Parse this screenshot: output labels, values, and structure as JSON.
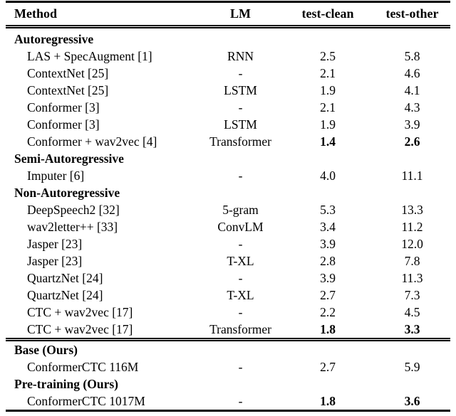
{
  "page": {
    "background": "#ffffff",
    "text_color": "#000000"
  },
  "table": {
    "columns": [
      {
        "label": "Method",
        "align": "left"
      },
      {
        "label": "LM",
        "align": "center"
      },
      {
        "label": "test-clean",
        "align": "center"
      },
      {
        "label": "test-other",
        "align": "center"
      }
    ],
    "groups": [
      {
        "rows": [
          {
            "type": "section",
            "label": "Autoregressive"
          },
          {
            "type": "data",
            "method": "LAS + SpecAugment [1]",
            "lm": "RNN",
            "test_clean": "2.5",
            "test_other": "5.8",
            "bold_values": false
          },
          {
            "type": "data",
            "method": "ContextNet [25]",
            "lm": "-",
            "test_clean": "2.1",
            "test_other": "4.6",
            "bold_values": false
          },
          {
            "type": "data",
            "method": "ContextNet [25]",
            "lm": "LSTM",
            "test_clean": "1.9",
            "test_other": "4.1",
            "bold_values": false
          },
          {
            "type": "data",
            "method": "Conformer [3]",
            "lm": "-",
            "test_clean": "2.1",
            "test_other": "4.3",
            "bold_values": false
          },
          {
            "type": "data",
            "method": "Conformer [3]",
            "lm": "LSTM",
            "test_clean": "1.9",
            "test_other": "3.9",
            "bold_values": false
          },
          {
            "type": "data",
            "method": "Conformer + wav2vec [4]",
            "lm": "Transformer",
            "test_clean": "1.4",
            "test_other": "2.6",
            "bold_values": true
          },
          {
            "type": "section",
            "label": "Semi-Autoregressive"
          },
          {
            "type": "data",
            "method": "Imputer [6]",
            "lm": "-",
            "test_clean": "4.0",
            "test_other": "11.1",
            "bold_values": false
          },
          {
            "type": "section",
            "label": "Non-Autoregressive"
          },
          {
            "type": "data",
            "method": "DeepSpeech2 [32]",
            "lm": "5-gram",
            "test_clean": "5.3",
            "test_other": "13.3",
            "bold_values": false
          },
          {
            "type": "data",
            "method": "wav2letter++ [33]",
            "lm": "ConvLM",
            "test_clean": "3.4",
            "test_other": "11.2",
            "bold_values": false
          },
          {
            "type": "data",
            "method": "Jasper [23]",
            "lm": "-",
            "test_clean": "3.9",
            "test_other": "12.0",
            "bold_values": false
          },
          {
            "type": "data",
            "method": "Jasper [23]",
            "lm": "T-XL",
            "test_clean": "2.8",
            "test_other": "7.8",
            "bold_values": false
          },
          {
            "type": "data",
            "method": "QuartzNet [24]",
            "lm": "-",
            "test_clean": "3.9",
            "test_other": "11.3",
            "bold_values": false
          },
          {
            "type": "data",
            "method": "QuartzNet [24]",
            "lm": "T-XL",
            "test_clean": "2.7",
            "test_other": "7.3",
            "bold_values": false
          },
          {
            "type": "data",
            "method": "CTC + wav2vec [17]",
            "lm": "-",
            "test_clean": "2.2",
            "test_other": "4.5",
            "bold_values": false
          },
          {
            "type": "data",
            "method": "CTC + wav2vec [17]",
            "lm": "Transformer",
            "test_clean": "1.8",
            "test_other": "3.3",
            "bold_values": true
          }
        ]
      },
      {
        "rows": [
          {
            "type": "section",
            "label": "Base (Ours)"
          },
          {
            "type": "data",
            "method": "ConformerCTC 116M",
            "lm": "-",
            "test_clean": "2.7",
            "test_other": "5.9",
            "bold_values": false
          },
          {
            "type": "section",
            "label": "Pre-training (Ours)"
          },
          {
            "type": "data",
            "method": "ConformerCTC 1017M",
            "lm": "-",
            "test_clean": "1.8",
            "test_other": "3.6",
            "bold_values": true
          }
        ]
      }
    ]
  }
}
